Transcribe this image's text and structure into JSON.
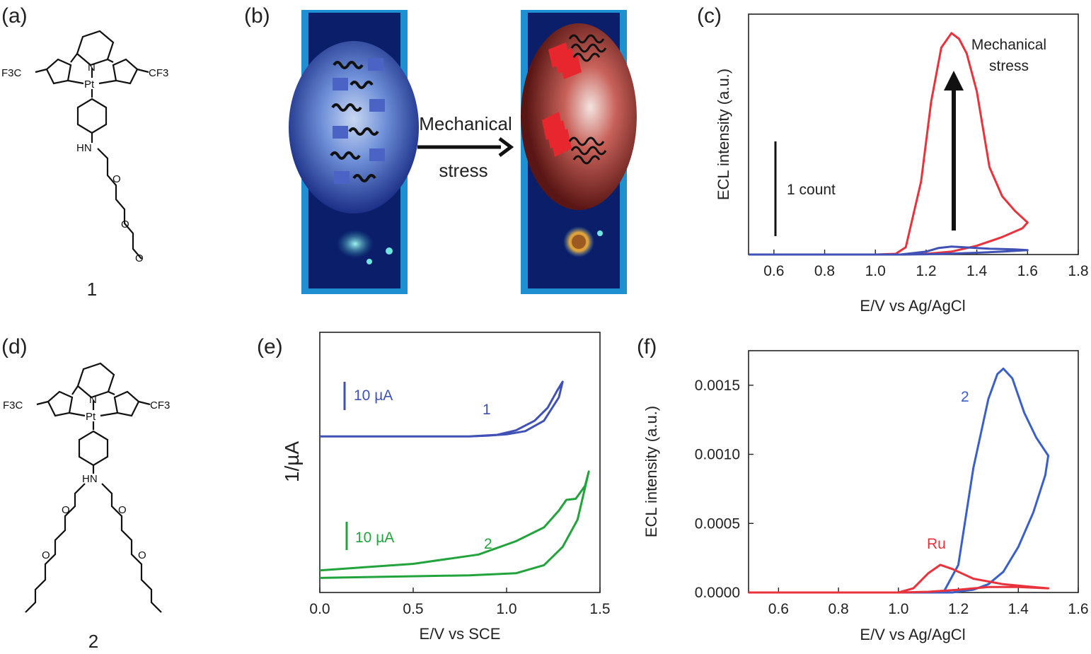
{
  "panels": {
    "a": {
      "label": "(a)",
      "compound_number": "1"
    },
    "b": {
      "label": "(b)",
      "arrow_text_line1": "Mechanical",
      "arrow_text_line2": "stress"
    },
    "c": {
      "label": "(c)"
    },
    "d": {
      "label": "(d)",
      "compound_number": "2"
    },
    "e": {
      "label": "(e)"
    },
    "f": {
      "label": "(f)"
    }
  },
  "structure_labels": {
    "cf3_left": "F3C",
    "cf3_right": "CF3",
    "pt": "Pt",
    "n": "N",
    "hn": "HN",
    "o": "O"
  },
  "colors": {
    "red": "#e8323c",
    "blue": "#3f51b5",
    "blue2": "#3a5fc8",
    "green": "#22a33c",
    "vial_frame": "#1e8fd0",
    "vial_bg": "#0b1e6a"
  },
  "chart_data": [
    {
      "id": "c",
      "type": "line",
      "xlabel": "E/V vs Ag/AgCl",
      "ylabel": "ECL intensity (a.u.)",
      "xlim": [
        0.5,
        1.8
      ],
      "ylim": [
        0,
        1.65
      ],
      "xticks": [
        "0.6",
        "0.8",
        "1.0",
        "1.2",
        "1.4",
        "1.6",
        "1.8"
      ],
      "xtick_values": [
        0.6,
        0.8,
        1.0,
        1.2,
        1.4,
        1.6,
        1.8
      ],
      "scale_bar_label": "1 count",
      "scale_bar_value": 1.0,
      "annotation_line1": "Mechanical",
      "annotation_line2": "stress",
      "series": [
        {
          "color": "red",
          "x": [
            0.5,
            1.0,
            1.08,
            1.12,
            1.18,
            1.22,
            1.26,
            1.3,
            1.33,
            1.36,
            1.4,
            1.45,
            1.5,
            1.55,
            1.6,
            1.58,
            1.5,
            1.4,
            1.3,
            1.2,
            1.1
          ],
          "y": [
            0.0,
            0.0,
            0.005,
            0.05,
            0.5,
            1.05,
            1.42,
            1.52,
            1.48,
            1.38,
            1.12,
            0.6,
            0.4,
            0.3,
            0.22,
            0.18,
            0.12,
            0.06,
            0.02,
            0.005,
            0.0
          ]
        },
        {
          "color": "blue",
          "x": [
            0.5,
            1.1,
            1.2,
            1.25,
            1.3,
            1.35,
            1.45,
            1.55,
            1.6,
            1.5,
            1.4,
            1.3,
            1.2,
            1.1
          ],
          "y": [
            0.0,
            0.0,
            0.02,
            0.045,
            0.055,
            0.05,
            0.04,
            0.035,
            0.03,
            0.02,
            0.012,
            0.006,
            0.002,
            0.0
          ]
        }
      ]
    },
    {
      "id": "e",
      "type": "line",
      "xlabel": "E/V vs SCE",
      "ylabel": "1/µA",
      "xlim": [
        0.0,
        1.5
      ],
      "ylim": [
        0,
        100
      ],
      "xticks": [
        "0.0",
        "0.5",
        "1.0",
        "1.5"
      ],
      "xtick_values": [
        0.0,
        0.5,
        1.0,
        1.5
      ],
      "series": [
        {
          "name": "1",
          "color": "blue",
          "scale_bar_label": "10 µA",
          "x": [
            0.0,
            0.8,
            0.95,
            1.05,
            1.15,
            1.22,
            1.27,
            1.3,
            1.28,
            1.2,
            1.1,
            1.0,
            0.9,
            0.8,
            0.0
          ],
          "y": [
            60.0,
            60.0,
            60.6,
            62.3,
            66.0,
            71.0,
            77.5,
            81.0,
            75.0,
            66.0,
            62.0,
            60.8,
            60.3,
            60.0,
            60.0
          ]
        },
        {
          "name": "2",
          "color": "green",
          "scale_bar_label": "10 µA",
          "x": [
            0.0,
            0.5,
            0.85,
            1.05,
            1.2,
            1.28,
            1.32,
            1.37,
            1.42,
            1.44,
            1.38,
            1.3,
            1.2,
            1.05,
            0.8,
            0.0
          ],
          "y": [
            8.5,
            11.0,
            14.6,
            19.7,
            25.0,
            31.5,
            35.6,
            36.0,
            41.0,
            46.5,
            28.0,
            17.5,
            10.5,
            7.4,
            6.6,
            5.6
          ]
        }
      ]
    },
    {
      "id": "f",
      "type": "line",
      "xlabel": "E/V vs Ag/AgCl",
      "ylabel": "ECL intensity (a.u.)",
      "xlim": [
        0.5,
        1.6
      ],
      "ylim": [
        0,
        0.00175
      ],
      "xticks": [
        "0.6",
        "0.8",
        "1.0",
        "1.2",
        "1.4",
        "1.6"
      ],
      "xtick_values": [
        0.6,
        0.8,
        1.0,
        1.2,
        1.4,
        1.6
      ],
      "yticks": [
        "0.0000",
        "0.0005",
        "0.0010",
        "0.0015"
      ],
      "ytick_values": [
        0.0,
        0.0005,
        0.001,
        0.0015
      ],
      "series": [
        {
          "name": "2",
          "color": "blue2",
          "x": [
            0.5,
            1.15,
            1.2,
            1.25,
            1.3,
            1.33,
            1.35,
            1.38,
            1.42,
            1.46,
            1.5,
            1.49,
            1.45,
            1.4,
            1.35,
            1.3,
            1.25,
            1.21,
            1.18,
            1.1
          ],
          "y": [
            0.0,
            0.0,
            0.0002,
            0.0009,
            0.0014,
            0.00158,
            0.00162,
            0.00155,
            0.0013,
            0.00112,
            0.00099,
            0.00085,
            0.00058,
            0.00033,
            0.00015,
            6e-05,
            2e-05,
            1e-05,
            0.0,
            0.0
          ]
        },
        {
          "name": "Ru",
          "color": "red",
          "x": [
            0.5,
            1.0,
            1.05,
            1.1,
            1.14,
            1.18,
            1.25,
            1.35,
            1.45,
            1.5,
            1.4,
            1.3,
            1.2,
            1.1,
            1.0,
            0.5
          ],
          "y": [
            0.0,
            0.0,
            3e-05,
            0.00014,
            0.0002,
            0.00017,
            0.0001,
            6e-05,
            4e-05,
            3e-05,
            4e-05,
            4e-05,
            2e-05,
            5e-06,
            0.0,
            0.0
          ]
        }
      ]
    }
  ]
}
